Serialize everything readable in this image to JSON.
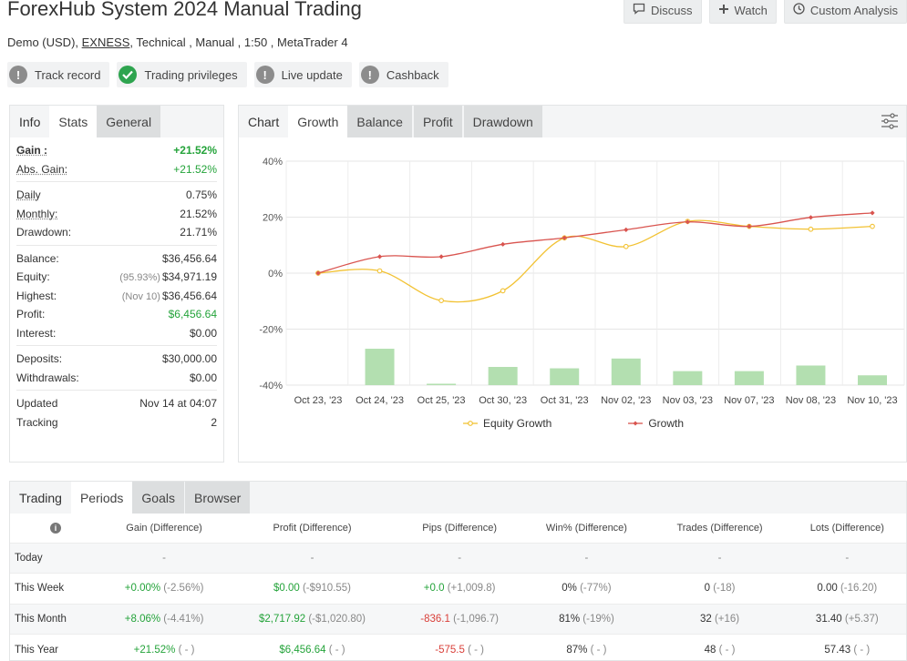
{
  "header": {
    "title": "ForexHub System 2024 Manual Trading",
    "subtitle_pre": "Demo (USD),",
    "subtitle_link": "EXNESS",
    "subtitle_post": ", Technical , Manual , 1:50 , MetaTrader 4",
    "buttons": {
      "discuss": "Discuss",
      "watch": "Watch",
      "custom_analysis": "Custom Analysis"
    }
  },
  "badges": [
    {
      "label": "Track record",
      "icon": "exclamation-icon"
    },
    {
      "label": "Trading privileges",
      "icon": "check-icon"
    },
    {
      "label": "Live update",
      "icon": "exclamation-icon"
    },
    {
      "label": "Cashback",
      "icon": "exclamation-icon"
    }
  ],
  "left_tabs": [
    "Info",
    "Stats",
    "General"
  ],
  "stats": {
    "gain_label": "Gain :",
    "gain_value": "+21.52%",
    "abs_gain_label": "Abs. Gain:",
    "abs_gain_value": "+21.52%",
    "daily_label": "Daily",
    "daily_value": "0.75%",
    "monthly_label": "Monthly:",
    "monthly_value": "21.52%",
    "drawdown_label": "Drawdown:",
    "drawdown_value": "21.71%",
    "balance_label": "Balance:",
    "balance_value": "$36,456.64",
    "equity_label": "Equity:",
    "equity_note": "(95.93%)",
    "equity_value": "$34,971.19",
    "highest_label": "Highest:",
    "highest_note": "(Nov 10)",
    "highest_value": "$36,456.64",
    "profit_label": "Profit:",
    "profit_value": "$6,456.64",
    "interest_label": "Interest:",
    "interest_value": "$0.00",
    "deposits_label": "Deposits:",
    "deposits_value": "$30,000.00",
    "withdrawals_label": "Withdrawals:",
    "withdrawals_value": "$0.00",
    "updated_label": "Updated",
    "updated_value": "Nov 14 at 04:07",
    "tracking_label": "Tracking",
    "tracking_value": "2"
  },
  "chart_tabs": [
    "Chart",
    "Growth",
    "Balance",
    "Profit",
    "Drawdown"
  ],
  "colors": {
    "equity_line": "#f2c233",
    "growth_line": "#d9544f",
    "bars": "#b3dfb0",
    "positive": "#24a33a",
    "negative": "#d9403a"
  },
  "chart_data": {
    "type": "line",
    "categories": [
      "Oct 23, '23",
      "Oct 24, '23",
      "Oct 25, '23",
      "Oct 30, '23",
      "Oct 31, '23",
      "Nov 02, '23",
      "Nov 03, '23",
      "Nov 07, '23",
      "Nov 08, '23",
      "Nov 10, '23"
    ],
    "y_ticks": [
      "40%",
      "20%",
      "0%",
      "-20%",
      "-40%"
    ],
    "ylim": [
      -40,
      40
    ],
    "series": [
      {
        "name": "Equity Growth",
        "values": [
          0,
          0.8,
          -9.8,
          -6.3,
          12.6,
          9.5,
          18.5,
          16.7,
          15.7,
          16.7
        ]
      },
      {
        "name": "Growth",
        "values": [
          0,
          5.9,
          5.9,
          10.3,
          12.6,
          15.5,
          18.3,
          16.7,
          19.9,
          21.5
        ]
      }
    ],
    "bar_series": {
      "values": [
        0,
        13,
        0.5,
        6.5,
        6,
        9.5,
        5,
        5,
        7,
        3.5
      ]
    },
    "grid": true,
    "legend": "bottom-center"
  },
  "bottom_tabs": [
    "Trading",
    "Periods",
    "Goals",
    "Browser"
  ],
  "periods": {
    "headers": [
      "Gain (Difference)",
      "Profit (Difference)",
      "Pips (Difference)",
      "Win% (Difference)",
      "Trades (Difference)",
      "Lots (Difference)"
    ],
    "info_icon": "i",
    "rows": [
      {
        "label": "Today",
        "cells": [
          [
            "-",
            ""
          ],
          [
            "-",
            ""
          ],
          [
            "-",
            ""
          ],
          [
            "-",
            ""
          ],
          [
            "-",
            ""
          ],
          [
            "-",
            ""
          ]
        ]
      },
      {
        "label": "This Week",
        "cells": [
          [
            "+0.00%",
            "(-2.56%)"
          ],
          [
            "$0.00",
            "(-$910.55)"
          ],
          [
            "+0.0",
            "(+1,009.8)"
          ],
          [
            "0%",
            "(-77%)"
          ],
          [
            "0",
            "(-18)"
          ],
          [
            "0.00",
            "(-16.20)"
          ]
        ]
      },
      {
        "label": "This Month",
        "cells": [
          [
            "+8.06%",
            "(-4.41%)"
          ],
          [
            "$2,717.92",
            "(-$1,020.80)"
          ],
          [
            "-836.1",
            "(-1,096.7)"
          ],
          [
            "81%",
            "(-19%)"
          ],
          [
            "32",
            "(+16)"
          ],
          [
            "31.40",
            "(+5.37)"
          ]
        ]
      },
      {
        "label": "This Year",
        "cells": [
          [
            "+21.52%",
            "( - )"
          ],
          [
            "$6,456.64",
            "( - )"
          ],
          [
            "-575.5",
            "( - )"
          ],
          [
            "87%",
            "( - )"
          ],
          [
            "48",
            "( - )"
          ],
          [
            "57.43",
            "( - )"
          ]
        ]
      }
    ]
  }
}
